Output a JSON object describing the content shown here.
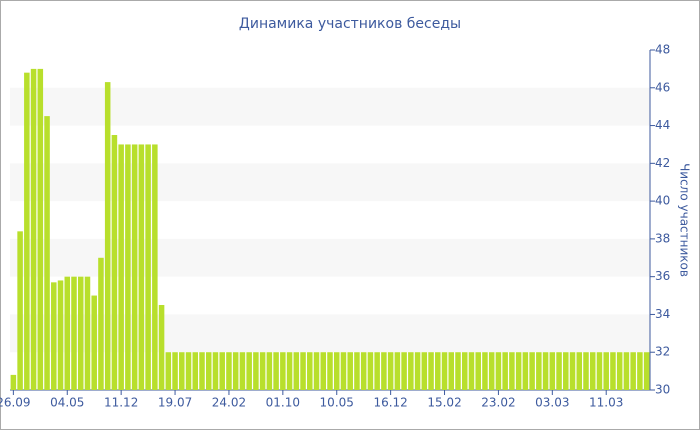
{
  "chart_data": {
    "type": "bar",
    "title": "Динамика участников беседы",
    "y_label": "Число участников",
    "categories": [
      "26.09",
      null,
      null,
      null,
      null,
      null,
      null,
      null,
      "04.05",
      null,
      null,
      null,
      null,
      null,
      null,
      null,
      "11.12",
      null,
      null,
      null,
      null,
      null,
      null,
      null,
      "19.07",
      null,
      null,
      null,
      null,
      null,
      null,
      null,
      "24.02",
      null,
      null,
      null,
      null,
      null,
      null,
      null,
      "01.10",
      null,
      null,
      null,
      null,
      null,
      null,
      null,
      "10.05",
      null,
      null,
      null,
      null,
      null,
      null,
      null,
      "16.12",
      null,
      null,
      null,
      null,
      null,
      null,
      null,
      "15.02",
      null,
      null,
      null,
      null,
      null,
      null,
      null,
      "23.02",
      null,
      null,
      null,
      null,
      null,
      null,
      null,
      "03.03",
      null,
      null,
      null,
      null,
      null,
      null,
      null,
      "11.03",
      null,
      null,
      null,
      null,
      null,
      null
    ],
    "values": [
      30.8,
      38.4,
      46.8,
      47,
      47,
      44.5,
      35.7,
      35.8,
      36,
      36,
      36,
      36,
      35,
      37,
      46.3,
      43.5,
      43,
      43,
      43,
      43,
      43,
      43,
      34.5,
      32,
      32,
      32,
      32,
      32,
      32,
      32,
      32,
      32,
      32,
      32,
      32,
      32,
      32,
      32,
      32,
      32,
      32,
      32,
      32,
      32,
      32,
      32,
      32,
      32,
      32,
      32,
      32,
      32,
      32,
      32,
      32,
      32,
      32,
      32,
      32,
      32,
      32,
      32,
      32,
      32,
      32,
      32,
      32,
      32,
      32,
      32,
      32,
      32,
      32,
      32,
      32,
      32,
      32,
      32,
      32,
      32,
      32,
      32,
      32,
      32,
      32,
      32,
      32,
      32,
      32,
      32,
      32,
      32,
      32,
      32,
      32
    ],
    "color": "#b8df2c",
    "ylim": [
      30,
      48
    ],
    "yticks": [
      30,
      32,
      34,
      36,
      38,
      40,
      42,
      44,
      46,
      48
    ],
    "y_axis_side": "right",
    "grid_bands": true
  }
}
